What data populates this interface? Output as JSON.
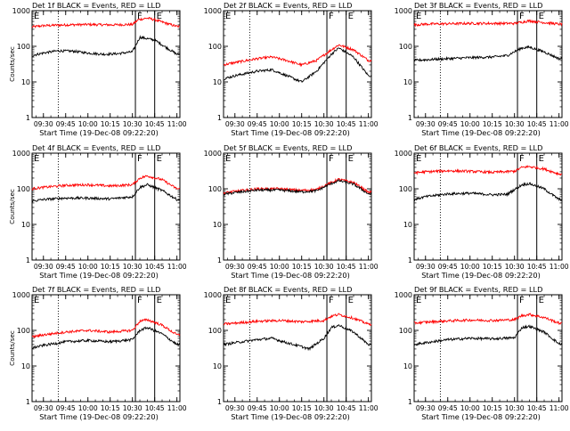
{
  "chart_data": [
    {
      "type": "line",
      "title": "Det 1f BLACK = Events, RED = LLD",
      "xlabel": "Start Time (19-Dec-08 09:22:20)",
      "ylabel": "Counts/sec",
      "yscale": "log",
      "ylim": [
        1,
        1000
      ],
      "xlim": [
        "09:22:20",
        "11:02:00"
      ],
      "xticks": [
        "09:30",
        "09:45",
        "10:00",
        "10:15",
        "10:30",
        "10:45",
        "11:00"
      ],
      "yticks": [
        "1",
        "10",
        "100",
        "1000"
      ],
      "markers": [
        {
          "label": "E",
          "time": "09:22:20",
          "style": "solid"
        },
        {
          "label": "",
          "time": "09:40:00",
          "style": "dotted"
        },
        {
          "label": "F",
          "time": "10:32:00",
          "style": "solid"
        },
        {
          "label": "E",
          "time": "10:45:00",
          "style": "solid"
        }
      ],
      "series": [
        {
          "name": "LLD",
          "color": "#ff0000",
          "x": [
            "09:22",
            "09:30",
            "09:45",
            "10:00",
            "10:15",
            "10:30",
            "10:34",
            "10:40",
            "10:45",
            "10:50",
            "11:00"
          ],
          "y": [
            350,
            380,
            400,
            410,
            400,
            410,
            560,
            620,
            560,
            480,
            360
          ]
        },
        {
          "name": "Events",
          "color": "#000000",
          "x": [
            "09:22",
            "09:30",
            "09:40",
            "09:50",
            "10:00",
            "10:10",
            "10:20",
            "10:30",
            "10:35",
            "10:45",
            "10:50",
            "11:00"
          ],
          "y": [
            55,
            65,
            75,
            73,
            65,
            60,
            62,
            70,
            180,
            150,
            110,
            60
          ]
        }
      ]
    },
    {
      "type": "line",
      "title": "Det 2f BLACK = Events, RED = LLD",
      "xlabel": "Start Time (19-Dec-08 09:22:20)",
      "ylabel": "",
      "yscale": "log",
      "ylim": [
        1,
        1000
      ],
      "xlim": [
        "09:22:20",
        "11:02:00"
      ],
      "xticks": [
        "09:30",
        "09:45",
        "10:00",
        "10:15",
        "10:30",
        "10:45",
        "11:00"
      ],
      "yticks": [
        "1",
        "10",
        "100",
        "1000"
      ],
      "markers": [
        {
          "label": "E",
          "time": "09:22:20",
          "style": "solid"
        },
        {
          "label": "",
          "time": "09:40:00",
          "style": "dotted"
        },
        {
          "label": "F",
          "time": "10:32:00",
          "style": "solid"
        },
        {
          "label": "E",
          "time": "10:45:00",
          "style": "solid"
        }
      ],
      "series": [
        {
          "name": "LLD",
          "color": "#ff0000",
          "x": [
            "09:22",
            "09:30",
            "09:45",
            "09:55",
            "10:05",
            "10:15",
            "10:25",
            "10:35",
            "10:40",
            "10:50",
            "11:00"
          ],
          "y": [
            30,
            35,
            45,
            50,
            40,
            30,
            40,
            80,
            110,
            80,
            40
          ]
        },
        {
          "name": "Events",
          "color": "#000000",
          "x": [
            "09:22",
            "09:30",
            "09:45",
            "09:55",
            "10:05",
            "10:15",
            "10:25",
            "10:35",
            "10:40",
            "10:50",
            "11:00"
          ],
          "y": [
            12,
            15,
            20,
            22,
            15,
            10,
            20,
            60,
            90,
            50,
            15
          ]
        }
      ]
    },
    {
      "type": "line",
      "title": "Det 3f BLACK = Events, RED = LLD",
      "xlabel": "Start Time (19-Dec-08 09:22:20)",
      "ylabel": "",
      "yscale": "log",
      "ylim": [
        1,
        1000
      ],
      "xlim": [
        "09:22:20",
        "11:02:00"
      ],
      "xticks": [
        "09:30",
        "09:45",
        "10:00",
        "10:15",
        "10:30",
        "10:45",
        "11:00"
      ],
      "yticks": [
        "1",
        "10",
        "100",
        "1000"
      ],
      "markers": [
        {
          "label": "E",
          "time": "09:22:20",
          "style": "solid"
        },
        {
          "label": "",
          "time": "09:40:00",
          "style": "dotted"
        },
        {
          "label": "F",
          "time": "10:32:00",
          "style": "solid"
        },
        {
          "label": "E",
          "time": "10:45:00",
          "style": "solid"
        }
      ],
      "series": [
        {
          "name": "LLD",
          "color": "#ff0000",
          "x": [
            "09:22",
            "09:30",
            "09:45",
            "10:00",
            "10:15",
            "10:30",
            "10:35",
            "10:40",
            "10:45",
            "11:00"
          ],
          "y": [
            400,
            420,
            430,
            440,
            440,
            440,
            480,
            520,
            490,
            420
          ]
        },
        {
          "name": "Events",
          "color": "#000000",
          "x": [
            "09:22",
            "09:30",
            "09:45",
            "10:00",
            "10:15",
            "10:25",
            "10:35",
            "10:40",
            "10:50",
            "11:00"
          ],
          "y": [
            40,
            42,
            45,
            48,
            50,
            55,
            90,
            95,
            70,
            45
          ]
        }
      ]
    },
    {
      "type": "line",
      "title": "Det 4f BLACK = Events, RED = LLD",
      "xlabel": "Start Time (19-Dec-08 09:22:20)",
      "ylabel": "Counts/sec",
      "yscale": "log",
      "ylim": [
        1,
        1000
      ],
      "xlim": [
        "09:22:20",
        "11:02:00"
      ],
      "xticks": [
        "09:30",
        "09:45",
        "10:00",
        "10:15",
        "10:30",
        "10:45",
        "11:00"
      ],
      "yticks": [
        "1",
        "10",
        "100",
        "1000"
      ],
      "markers": [
        {
          "label": "E",
          "time": "09:22:20",
          "style": "solid"
        },
        {
          "label": "",
          "time": "09:40:00",
          "style": "dotted"
        },
        {
          "label": "F",
          "time": "10:32:00",
          "style": "solid"
        },
        {
          "label": "E",
          "time": "10:45:00",
          "style": "solid"
        }
      ],
      "series": [
        {
          "name": "LLD",
          "color": "#ff0000",
          "x": [
            "09:22",
            "09:30",
            "09:45",
            "10:00",
            "10:15",
            "10:30",
            "10:35",
            "10:40",
            "10:50",
            "11:00"
          ],
          "y": [
            100,
            110,
            125,
            130,
            120,
            130,
            200,
            230,
            180,
            100
          ]
        },
        {
          "name": "Events",
          "color": "#000000",
          "x": [
            "09:22",
            "09:30",
            "09:45",
            "10:00",
            "10:15",
            "10:30",
            "10:35",
            "10:40",
            "10:50",
            "11:00"
          ],
          "y": [
            45,
            50,
            55,
            55,
            52,
            60,
            110,
            130,
            90,
            50
          ]
        }
      ]
    },
    {
      "type": "line",
      "title": "Det 5f BLACK = Events, RED = LLD",
      "xlabel": "Start Time (19-Dec-08 09:22:20)",
      "ylabel": "",
      "yscale": "log",
      "ylim": [
        1,
        1000
      ],
      "xlim": [
        "09:22:20",
        "11:02:00"
      ],
      "xticks": [
        "09:30",
        "09:45",
        "10:00",
        "10:15",
        "10:30",
        "10:45",
        "11:00"
      ],
      "yticks": [
        "1",
        "10",
        "100",
        "1000"
      ],
      "markers": [
        {
          "label": "E",
          "time": "09:22:20",
          "style": "solid"
        },
        {
          "label": "",
          "time": "09:40:00",
          "style": "dotted"
        },
        {
          "label": "F",
          "time": "10:32:00",
          "style": "solid"
        },
        {
          "label": "E",
          "time": "10:45:00",
          "style": "solid"
        }
      ],
      "series": [
        {
          "name": "LLD",
          "color": "#ff0000",
          "x": [
            "09:22",
            "09:30",
            "09:45",
            "10:00",
            "10:15",
            "10:25",
            "10:35",
            "10:40",
            "10:50",
            "11:00"
          ],
          "y": [
            75,
            85,
            100,
            100,
            90,
            95,
            150,
            185,
            150,
            80
          ]
        },
        {
          "name": "Events",
          "color": "#000000",
          "x": [
            "09:22",
            "09:30",
            "09:45",
            "10:00",
            "10:15",
            "10:25",
            "10:35",
            "10:40",
            "10:50",
            "11:00"
          ],
          "y": [
            70,
            78,
            92,
            92,
            82,
            88,
            140,
            170,
            135,
            72
          ]
        }
      ]
    },
    {
      "type": "line",
      "title": "Det 6f BLACK = Events, RED = LLD",
      "xlabel": "Start Time (19-Dec-08 09:22:20)",
      "ylabel": "",
      "yscale": "log",
      "ylim": [
        1,
        1000
      ],
      "xlim": [
        "09:22:20",
        "11:02:00"
      ],
      "xticks": [
        "09:30",
        "09:45",
        "10:00",
        "10:15",
        "10:30",
        "10:45",
        "11:00"
      ],
      "yticks": [
        "1",
        "10",
        "100",
        "1000"
      ],
      "markers": [
        {
          "label": "E",
          "time": "09:22:20",
          "style": "solid"
        },
        {
          "label": "",
          "time": "09:40:00",
          "style": "dotted"
        },
        {
          "label": "F",
          "time": "10:32:00",
          "style": "solid"
        },
        {
          "label": "E",
          "time": "10:45:00",
          "style": "solid"
        }
      ],
      "series": [
        {
          "name": "LLD",
          "color": "#ff0000",
          "x": [
            "09:22",
            "09:30",
            "09:45",
            "10:00",
            "10:15",
            "10:30",
            "10:35",
            "10:40",
            "10:50",
            "11:00"
          ],
          "y": [
            280,
            300,
            320,
            310,
            290,
            310,
            400,
            420,
            360,
            260
          ]
        },
        {
          "name": "Events",
          "color": "#000000",
          "x": [
            "09:22",
            "09:30",
            "09:45",
            "10:00",
            "10:15",
            "10:25",
            "10:35",
            "10:40",
            "10:50",
            "11:00"
          ],
          "y": [
            50,
            60,
            72,
            75,
            68,
            70,
            130,
            140,
            100,
            50
          ]
        }
      ]
    },
    {
      "type": "line",
      "title": "Det 7f BLACK = Events, RED = LLD",
      "xlabel": "Start Time (19-Dec-08 09:22:20)",
      "ylabel": "Counts/sec",
      "yscale": "log",
      "ylim": [
        1,
        1000
      ],
      "xlim": [
        "09:22:20",
        "11:02:00"
      ],
      "xticks": [
        "09:30",
        "09:45",
        "10:00",
        "10:15",
        "10:30",
        "10:45",
        "11:00"
      ],
      "yticks": [
        "1",
        "10",
        "100",
        "1000"
      ],
      "markers": [
        {
          "label": "E",
          "time": "09:22:20",
          "style": "solid"
        },
        {
          "label": "",
          "time": "09:40:00",
          "style": "dotted"
        },
        {
          "label": "F",
          "time": "10:32:00",
          "style": "solid"
        },
        {
          "label": "E",
          "time": "10:45:00",
          "style": "solid"
        }
      ],
      "series": [
        {
          "name": "LLD",
          "color": "#ff0000",
          "x": [
            "09:22",
            "09:30",
            "09:45",
            "10:00",
            "10:15",
            "10:30",
            "10:35",
            "10:40",
            "10:50",
            "11:00"
          ],
          "y": [
            65,
            75,
            90,
            100,
            90,
            100,
            180,
            200,
            140,
            75
          ]
        },
        {
          "name": "Events",
          "color": "#000000",
          "x": [
            "09:22",
            "09:30",
            "09:45",
            "10:00",
            "10:15",
            "10:30",
            "10:35",
            "10:40",
            "10:50",
            "11:00"
          ],
          "y": [
            32,
            38,
            48,
            52,
            48,
            55,
            100,
            120,
            80,
            40
          ]
        }
      ]
    },
    {
      "type": "line",
      "title": "Det 8f BLACK = Events, RED = LLD",
      "xlabel": "Start Time (19-Dec-08 09:22:20)",
      "ylabel": "",
      "yscale": "log",
      "ylim": [
        1,
        1000
      ],
      "xlim": [
        "09:22:20",
        "11:02:00"
      ],
      "xticks": [
        "09:30",
        "09:45",
        "10:00",
        "10:15",
        "10:30",
        "10:45",
        "11:00"
      ],
      "yticks": [
        "1",
        "10",
        "100",
        "1000"
      ],
      "markers": [
        {
          "label": "E",
          "time": "09:22:20",
          "style": "solid"
        },
        {
          "label": "",
          "time": "09:40:00",
          "style": "dotted"
        },
        {
          "label": "F",
          "time": "10:32:00",
          "style": "solid"
        },
        {
          "label": "E",
          "time": "10:45:00",
          "style": "solid"
        }
      ],
      "series": [
        {
          "name": "LLD",
          "color": "#ff0000",
          "x": [
            "09:22",
            "09:30",
            "09:45",
            "10:00",
            "10:15",
            "10:30",
            "10:35",
            "10:40",
            "10:50",
            "11:00"
          ],
          "y": [
            150,
            160,
            180,
            190,
            175,
            190,
            250,
            280,
            220,
            150
          ]
        },
        {
          "name": "Events",
          "color": "#000000",
          "x": [
            "09:22",
            "09:30",
            "09:45",
            "09:55",
            "10:05",
            "10:15",
            "10:20",
            "10:30",
            "10:35",
            "10:40",
            "10:50",
            "11:00"
          ],
          "y": [
            40,
            45,
            55,
            60,
            45,
            35,
            30,
            60,
            120,
            140,
            90,
            40
          ]
        }
      ]
    },
    {
      "type": "line",
      "title": "Det 9f BLACK = Events, RED = LLD",
      "xlabel": "Start Time (19-Dec-08 09:22:20)",
      "ylabel": "",
      "yscale": "log",
      "ylim": [
        1,
        1000
      ],
      "xlim": [
        "09:22:20",
        "11:02:00"
      ],
      "xticks": [
        "09:30",
        "09:45",
        "10:00",
        "10:15",
        "10:30",
        "10:45",
        "11:00"
      ],
      "yticks": [
        "1",
        "10",
        "100",
        "1000"
      ],
      "markers": [
        {
          "label": "E",
          "time": "09:22:20",
          "style": "solid"
        },
        {
          "label": "",
          "time": "09:40:00",
          "style": "dotted"
        },
        {
          "label": "F",
          "time": "10:32:00",
          "style": "solid"
        },
        {
          "label": "E",
          "time": "10:45:00",
          "style": "solid"
        }
      ],
      "series": [
        {
          "name": "LLD",
          "color": "#ff0000",
          "x": [
            "09:22",
            "09:30",
            "09:45",
            "10:00",
            "10:15",
            "10:30",
            "10:35",
            "10:40",
            "10:50",
            "11:00"
          ],
          "y": [
            160,
            170,
            185,
            195,
            190,
            200,
            260,
            280,
            230,
            160
          ]
        },
        {
          "name": "Events",
          "color": "#000000",
          "x": [
            "09:22",
            "09:30",
            "09:45",
            "10:00",
            "10:15",
            "10:30",
            "10:35",
            "10:40",
            "10:50",
            "11:00"
          ],
          "y": [
            40,
            45,
            55,
            60,
            58,
            62,
            120,
            130,
            90,
            42
          ]
        }
      ]
    }
  ]
}
